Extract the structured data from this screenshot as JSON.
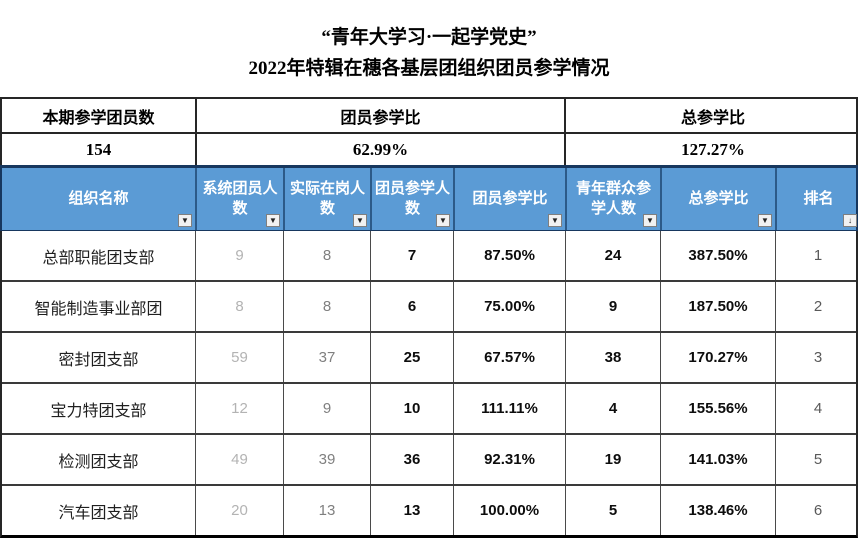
{
  "title": {
    "line1": "“青年大学习·一起学党史”",
    "line2": "2022年特辑在穗各基层团组织团员参学情况"
  },
  "summary": {
    "cols": [
      {
        "header": "本期参学团员数",
        "value": "154"
      },
      {
        "header": "团员参学比",
        "value": "62.99%"
      },
      {
        "header": "总参学比",
        "value": "127.27%"
      }
    ]
  },
  "table": {
    "headers": [
      {
        "label": "组织名称",
        "icon": "▼"
      },
      {
        "label": "系统团员人数",
        "icon": "▼"
      },
      {
        "label": "实际在岗人数",
        "icon": "▼"
      },
      {
        "label": "团员参学人数",
        "icon": "▼"
      },
      {
        "label": "团员参学比",
        "icon": "▼"
      },
      {
        "label": "青年群众参学人数",
        "icon": "▼"
      },
      {
        "label": "总参学比",
        "icon": "▼"
      },
      {
        "label": "排名",
        "icon": "↓"
      }
    ],
    "rows": [
      {
        "cells": [
          "总部职能团支部",
          "9",
          "8",
          "7",
          "87.50%",
          "24",
          "387.50%",
          "1"
        ]
      },
      {
        "cells": [
          "智能制造事业部团",
          "8",
          "8",
          "6",
          "75.00%",
          "9",
          "187.50%",
          "2"
        ]
      },
      {
        "cells": [
          "密封团支部",
          "59",
          "37",
          "25",
          "67.57%",
          "38",
          "170.27%",
          "3"
        ]
      },
      {
        "cells": [
          "宝力特团支部",
          "12",
          "9",
          "10",
          "111.11%",
          "4",
          "155.56%",
          "4"
        ]
      },
      {
        "cells": [
          "检测团支部",
          "49",
          "39",
          "36",
          "92.31%",
          "19",
          "141.03%",
          "5"
        ]
      },
      {
        "cells": [
          "汽车团支部",
          "20",
          "13",
          "13",
          "100.00%",
          "5",
          "138.46%",
          "6"
        ]
      }
    ]
  },
  "colors": {
    "header_bg": "#5b9bd5",
    "header_text": "#ffffff",
    "header_top_border": "#17375e",
    "grid_border": "#4a4a4a",
    "muted_light_text": "#b3b3b3",
    "muted_mid_text": "#7f7f7f",
    "strong_text": "#0d0d0d",
    "rank_text": "#595959"
  }
}
